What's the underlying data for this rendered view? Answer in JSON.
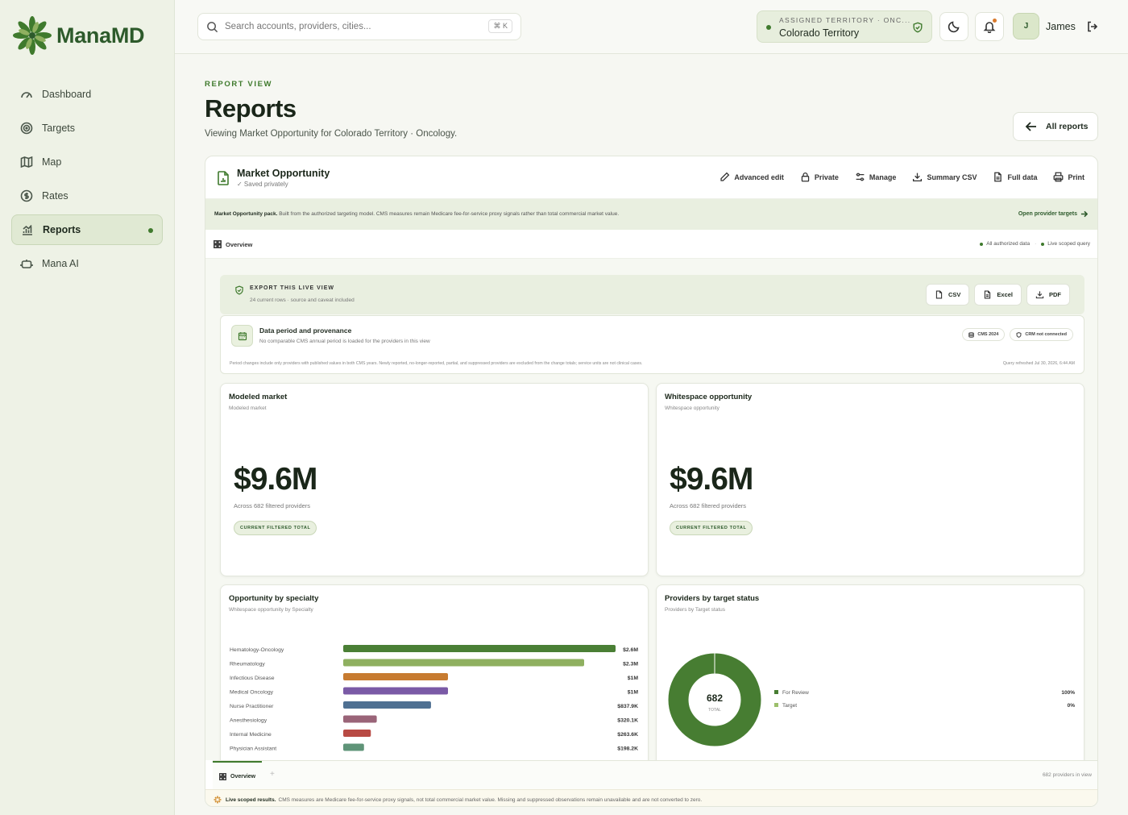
{
  "brand": {
    "name": "ManaMD"
  },
  "sidebar": {
    "items": [
      {
        "label": "Dashboard",
        "icon": "gauge-icon"
      },
      {
        "label": "Targets",
        "icon": "target-icon"
      },
      {
        "label": "Map",
        "icon": "map-icon"
      },
      {
        "label": "Rates",
        "icon": "dollar-icon"
      },
      {
        "label": "Reports",
        "icon": "chart-icon",
        "active": true
      },
      {
        "label": "Mana AI",
        "icon": "robot-icon"
      }
    ]
  },
  "topbar": {
    "search_placeholder": "Search accounts, providers, cities...",
    "shortcut": "⌘ K",
    "territory_label": "ASSIGNED TERRITORY · ONC...",
    "territory_value": "Colorado Territory",
    "user_initial": "J",
    "user_name": "James"
  },
  "page": {
    "eyebrow": "REPORT VIEW",
    "title": "Reports",
    "subtitle": "Viewing Market Opportunity for Colorado Territory · Oncology.",
    "all_reports": "All reports"
  },
  "report": {
    "title": "Market Opportunity",
    "saved": "✓  Saved privately",
    "actions": [
      "Advanced edit",
      "Private",
      "Manage",
      "Summary CSV",
      "Full data",
      "Print"
    ],
    "pack_title": "Market Opportunity pack.",
    "pack_text": "Built from the authorized targeting model. CMS measures remain Medicare fee-for-service proxy signals rather than total commercial market value.",
    "pack_link": "Open provider targets",
    "overview_label": "Overview",
    "scope_1": "All authorized data",
    "scope_2": "Live scoped query",
    "export_title": "EXPORT THIS LIVE VIEW",
    "export_sub": "24 current rows · source and caveat included",
    "export_buttons": [
      "CSV",
      "Excel",
      "PDF"
    ],
    "prov_title": "Data period and provenance",
    "prov_sub": "No comparable CMS annual period is loaded for the providers in this view",
    "prov_tags": [
      "CMS 2024",
      "CRM not connected"
    ],
    "prov_note": "Period changes include only providers with published values in both CMS years. Newly reported, no-longer-reported, partial, and suppressed providers are excluded from the change totals; service units are not clinical cases.",
    "prov_refresh": "Query refreshed Jul 30, 2026, 6:44 AM",
    "cards": [
      {
        "title": "Modeled market",
        "sub": "Modeled market",
        "value": "$9.6M",
        "note": "Across 682 filtered providers",
        "badge": "CURRENT FILTERED TOTAL"
      },
      {
        "title": "Whitespace opportunity",
        "sub": "Whitespace opportunity",
        "value": "$9.6M",
        "note": "Across 682 filtered providers",
        "badge": "CURRENT FILTERED TOTAL"
      }
    ],
    "specialty_title": "Opportunity by specialty",
    "specialty_sub": "Whitespace opportunity by Specialty",
    "status_title": "Providers by target status",
    "status_sub": "Providers by Target status",
    "footer_tab": "Overview",
    "footer_plus": "+",
    "footer_count": "682 providers in view",
    "footer_note_bold": "Live scoped results.",
    "footer_note": "CMS measures are Medicare fee-for-service proxy signals, not total commercial market value. Missing and suppressed observations remain unavailable and are not converted to zero."
  },
  "chart_data": [
    {
      "type": "bar",
      "orientation": "horizontal",
      "categories": [
        "Hematology-Oncology",
        "Rheumatology",
        "Infectious Disease",
        "Medical Oncology",
        "Nurse Practitioner",
        "Anesthesiology",
        "Internal Medicine",
        "Physician Assistant"
      ],
      "values": [
        2600000,
        2300000,
        1000000,
        1000000,
        837900,
        320100,
        263600,
        198200
      ],
      "labels": [
        "$2.6M",
        "$2.3M",
        "$1M",
        "$1M",
        "$837.9K",
        "$320.1K",
        "$263.6K",
        "$198.2K"
      ],
      "colors": [
        "#4a7f35",
        "#8fb060",
        "#c77b30",
        "#7a5aa6",
        "#4f7092",
        "#9a6478",
        "#b84a44",
        "#5f9478"
      ]
    },
    {
      "type": "pie",
      "center_value": "682",
      "center_label": "TOTAL",
      "categories": [
        "For Review",
        "Target"
      ],
      "values": [
        100,
        0
      ],
      "labels": [
        "100%",
        "0%"
      ],
      "colors": [
        "#477d32",
        "#9cbf6b"
      ]
    }
  ]
}
